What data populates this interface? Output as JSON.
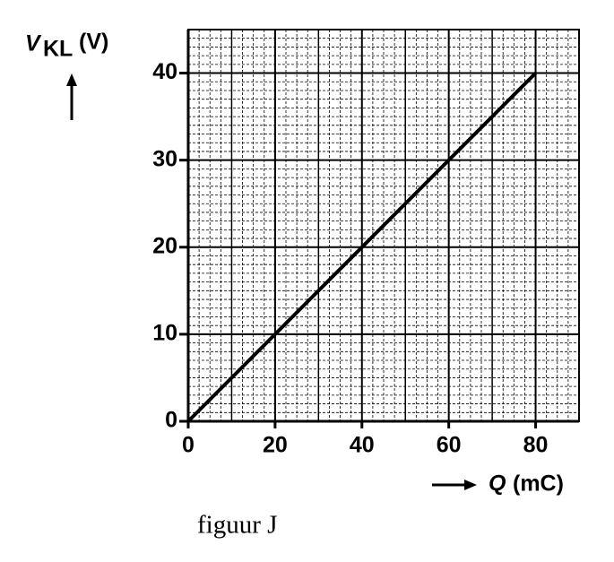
{
  "chart_data": {
    "type": "line",
    "ylabel": {
      "symbol": "V",
      "subscript": "KL",
      "unit": "(V)"
    },
    "xlabel": {
      "symbol": "Q",
      "unit": "(mC)"
    },
    "caption": "figuur J",
    "x": [
      0,
      80
    ],
    "series": [
      {
        "color": "#000000",
        "values": [
          0,
          40
        ]
      }
    ],
    "xlim": [
      0,
      90
    ],
    "xticks": [
      0,
      20,
      40,
      60,
      80
    ],
    "ylim": [
      0,
      45
    ],
    "yticks": [
      0,
      10,
      20,
      30,
      40
    ],
    "grid": true
  }
}
